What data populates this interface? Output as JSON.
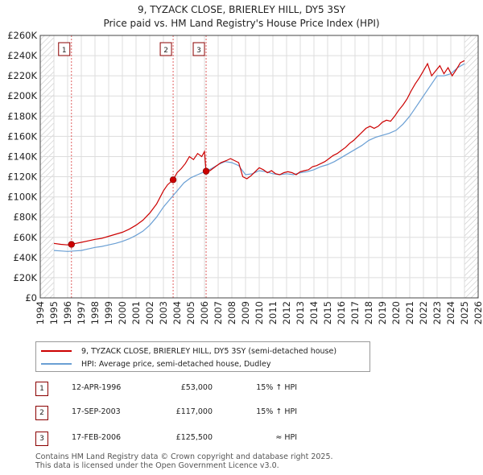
{
  "header": {
    "title": "9, TYZACK CLOSE, BRIERLEY HILL, DY5 3SY",
    "subtitle": "Price paid vs. HM Land Registry's House Price Index (HPI)"
  },
  "colors": {
    "property_line": "#cc0000",
    "hpi_line": "#6a9fd4",
    "marker_line": "#e06060",
    "hatch": "#c8c8c8",
    "grid": "#dddddd"
  },
  "chart_data": {
    "type": "line",
    "title": "9, TYZACK CLOSE, BRIERLEY HILL, DY5 3SY",
    "subtitle": "Price paid vs. HM Land Registry's House Price Index (HPI)",
    "xlabel": "",
    "ylabel": "",
    "xlim": [
      1994,
      2026
    ],
    "ylim": [
      0,
      260000
    ],
    "grid": true,
    "legend_position": "below",
    "x_ticks": [
      "1994",
      "1995",
      "1996",
      "1997",
      "1998",
      "1999",
      "2000",
      "2001",
      "2002",
      "2003",
      "2004",
      "2005",
      "2006",
      "2007",
      "2008",
      "2009",
      "2010",
      "2011",
      "2012",
      "2013",
      "2014",
      "2015",
      "2016",
      "2017",
      "2018",
      "2019",
      "2020",
      "2021",
      "2022",
      "2023",
      "2024",
      "2025",
      "2026"
    ],
    "y_ticks": [
      {
        "value": 0,
        "label": "£0"
      },
      {
        "value": 20000,
        "label": "£20K"
      },
      {
        "value": 40000,
        "label": "£40K"
      },
      {
        "value": 60000,
        "label": "£60K"
      },
      {
        "value": 80000,
        "label": "£80K"
      },
      {
        "value": 100000,
        "label": "£100K"
      },
      {
        "value": 120000,
        "label": "£120K"
      },
      {
        "value": 140000,
        "label": "£140K"
      },
      {
        "value": 160000,
        "label": "£160K"
      },
      {
        "value": 180000,
        "label": "£180K"
      },
      {
        "value": 200000,
        "label": "£200K"
      },
      {
        "value": 220000,
        "label": "£220K"
      },
      {
        "value": 240000,
        "label": "£240K"
      },
      {
        "value": 260000,
        "label": "£260K"
      }
    ],
    "hatched_before": 1995.0,
    "hatched_after": 2025.0,
    "series": [
      {
        "name": "9, TYZACK CLOSE, BRIERLEY HILL, DY5 3SY (semi-detached house)",
        "color": "#cc0000",
        "x": [
          1995.0,
          1995.5,
          1996.0,
          1996.28,
          1996.6,
          1997.0,
          1997.5,
          1998.0,
          1998.5,
          1999.0,
          1999.5,
          2000.0,
          2000.5,
          2001.0,
          2001.5,
          2002.0,
          2002.5,
          2003.0,
          2003.3,
          2003.71,
          2004.0,
          2004.3,
          2004.6,
          2004.9,
          2005.2,
          2005.5,
          2005.8,
          2006.0,
          2006.12,
          2006.4,
          2006.8,
          2007.2,
          2007.6,
          2007.9,
          2008.2,
          2008.5,
          2008.8,
          2009.1,
          2009.4,
          2009.7,
          2010.0,
          2010.3,
          2010.6,
          2010.9,
          2011.2,
          2011.5,
          2011.8,
          2012.1,
          2012.4,
          2012.7,
          2013.0,
          2013.3,
          2013.6,
          2013.9,
          2014.2,
          2014.5,
          2014.8,
          2015.1,
          2015.4,
          2015.7,
          2016.0,
          2016.3,
          2016.6,
          2016.9,
          2017.2,
          2017.5,
          2017.8,
          2018.1,
          2018.4,
          2018.7,
          2019.0,
          2019.3,
          2019.6,
          2019.9,
          2020.2,
          2020.5,
          2020.8,
          2021.1,
          2021.4,
          2021.7,
          2022.0,
          2022.3,
          2022.6,
          2022.9,
          2023.2,
          2023.5,
          2023.8,
          2024.1,
          2024.4,
          2024.7,
          2025.0
        ],
        "values": [
          54000,
          53000,
          52500,
          53000,
          54000,
          55000,
          56500,
          58000,
          59000,
          61000,
          63000,
          65000,
          68000,
          72000,
          77000,
          84000,
          93000,
          106000,
          112000,
          117000,
          124000,
          128000,
          133000,
          140000,
          137000,
          143000,
          140000,
          145000,
          125500,
          126000,
          130000,
          134000,
          136000,
          138000,
          136000,
          134000,
          120000,
          118000,
          121000,
          125000,
          129000,
          127000,
          124000,
          126000,
          123000,
          122000,
          124000,
          125000,
          124000,
          122000,
          125000,
          126000,
          127000,
          130000,
          131000,
          133000,
          135000,
          138000,
          141000,
          143000,
          146000,
          149000,
          153000,
          156000,
          160000,
          164000,
          168000,
          170000,
          168000,
          170000,
          174000,
          176000,
          175000,
          180000,
          186000,
          191000,
          197000,
          205000,
          212000,
          218000,
          225000,
          232000,
          220000,
          225000,
          230000,
          222000,
          228000,
          220000,
          226000,
          233000,
          235000
        ]
      },
      {
        "name": "HPI: Average price, semi-detached house, Dudley",
        "color": "#6a9fd4",
        "x": [
          1995.0,
          1995.5,
          1996.0,
          1996.5,
          1997.0,
          1997.5,
          1998.0,
          1998.5,
          1999.0,
          1999.5,
          2000.0,
          2000.5,
          2001.0,
          2001.5,
          2002.0,
          2002.5,
          2003.0,
          2003.5,
          2004.0,
          2004.5,
          2005.0,
          2005.5,
          2006.0,
          2006.5,
          2007.0,
          2007.5,
          2008.0,
          2008.5,
          2009.0,
          2009.5,
          2010.0,
          2010.5,
          2011.0,
          2011.5,
          2012.0,
          2012.5,
          2013.0,
          2013.5,
          2014.0,
          2014.5,
          2015.0,
          2015.5,
          2016.0,
          2016.5,
          2017.0,
          2017.5,
          2018.0,
          2018.5,
          2019.0,
          2019.5,
          2020.0,
          2020.5,
          2021.0,
          2021.5,
          2022.0,
          2022.5,
          2023.0,
          2023.5,
          2024.0,
          2024.5,
          2025.0
        ],
        "values": [
          47000,
          46500,
          46000,
          46500,
          47000,
          48500,
          50000,
          51000,
          52500,
          54000,
          56000,
          58500,
          62000,
          66000,
          72000,
          80000,
          90000,
          98000,
          106000,
          114000,
          119000,
          122000,
          125000,
          128000,
          132000,
          135000,
          134000,
          131000,
          122000,
          123000,
          126000,
          125000,
          123000,
          122000,
          123000,
          122000,
          124000,
          125000,
          127000,
          130000,
          132000,
          135000,
          139000,
          143000,
          147000,
          151000,
          156000,
          159000,
          161000,
          163000,
          166000,
          172000,
          180000,
          190000,
          200000,
          210000,
          220000,
          220000,
          222000,
          228000,
          232000
        ]
      }
    ],
    "sales": [
      {
        "id": "1",
        "x": 1996.28,
        "value": 53000
      },
      {
        "id": "2",
        "x": 2003.71,
        "value": 117000
      },
      {
        "id": "3",
        "x": 2006.12,
        "value": 125500
      }
    ]
  },
  "legend": {
    "property_label": "9, TYZACK CLOSE, BRIERLEY HILL, DY5 3SY (semi-detached house)",
    "hpi_label": "HPI: Average price, semi-detached house, Dudley"
  },
  "transactions": [
    {
      "num": "1",
      "date": "12-APR-1996",
      "price": "£53,000",
      "delta": "15% ↑ HPI"
    },
    {
      "num": "2",
      "date": "17-SEP-2003",
      "price": "£117,000",
      "delta": "15% ↑ HPI"
    },
    {
      "num": "3",
      "date": "17-FEB-2006",
      "price": "£125,500",
      "delta": "≈ HPI"
    }
  ],
  "footer": {
    "line1": "Contains HM Land Registry data © Crown copyright and database right 2025.",
    "line2": "This data is licensed under the Open Government Licence v3.0."
  }
}
